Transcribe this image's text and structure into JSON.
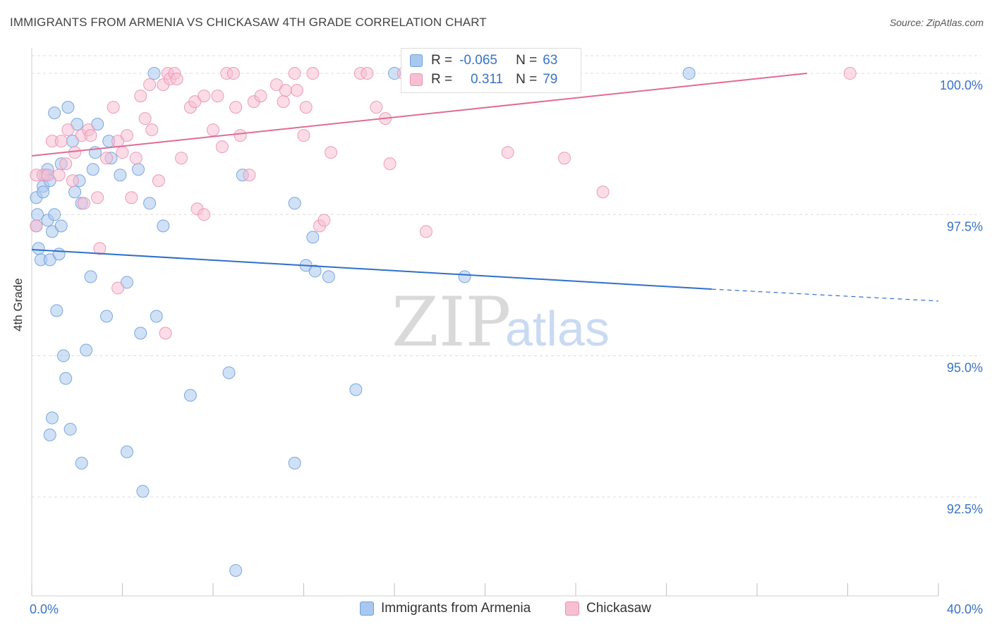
{
  "title": "IMMIGRANTS FROM ARMENIA VS CHICKASAW 4TH GRADE CORRELATION CHART",
  "source": "Source: ZipAtlas.com",
  "watermark": {
    "zip": "ZIP",
    "atlas": "atlas"
  },
  "colors": {
    "blue_fill": "#a9c8ef",
    "blue_stroke": "#6f9fdc",
    "blue_line": "#2f6fcb",
    "pink_fill": "#f7bfd3",
    "pink_stroke": "#e992b3",
    "pink_line": "#e06b98",
    "tick_label": "#3a73c4",
    "grid": "#dcdcdc"
  },
  "stats": {
    "armenia": {
      "r_label": "R =",
      "r_value": "-0.065",
      "n_label": "N =",
      "n_value": "63"
    },
    "chickasaw": {
      "r_label": "R =",
      "r_value": "0.311",
      "n_label": "N =",
      "n_value": "79"
    }
  },
  "legend": {
    "armenia": "Immigrants from Armenia",
    "chickasaw": "Chickasaw"
  },
  "chart_data": {
    "type": "scatter",
    "title": "IMMIGRANTS FROM ARMENIA VS CHICKASAW 4TH GRADE CORRELATION CHART",
    "xlabel": "",
    "ylabel": "4th Grade",
    "xlim": [
      0,
      40
    ],
    "ylim": [
      90.75,
      100.45
    ],
    "x_tick_labels": [
      {
        "value": 0,
        "label": "0.0%"
      },
      {
        "value": 40,
        "label": "40.0%"
      }
    ],
    "y_tick_labels": [
      {
        "value": 100.0,
        "label": "100.0%"
      },
      {
        "value": 97.5,
        "label": "97.5%"
      },
      {
        "value": 95.0,
        "label": "95.0%"
      },
      {
        "value": 92.5,
        "label": "92.5%"
      }
    ],
    "series": [
      {
        "name": "Immigrants from Armenia",
        "color": "#a9c8ef",
        "trend": {
          "x0": 0,
          "y0": 96.88,
          "x1": 30.0,
          "y1": 96.18,
          "dash_to_x": 40.0,
          "dash_to_y": 95.97
        },
        "points": [
          [
            0.2,
            97.8
          ],
          [
            0.25,
            97.5
          ],
          [
            0.2,
            97.3
          ],
          [
            0.3,
            96.9
          ],
          [
            0.4,
            96.7
          ],
          [
            0.5,
            98.0
          ],
          [
            0.5,
            97.9
          ],
          [
            0.6,
            98.2
          ],
          [
            0.7,
            98.3
          ],
          [
            0.7,
            97.4
          ],
          [
            0.8,
            98.1
          ],
          [
            0.8,
            96.7
          ],
          [
            0.8,
            93.6
          ],
          [
            0.9,
            97.2
          ],
          [
            0.9,
            93.9
          ],
          [
            1.0,
            97.5
          ],
          [
            1.0,
            99.3
          ],
          [
            1.1,
            95.8
          ],
          [
            1.2,
            96.8
          ],
          [
            1.3,
            97.3
          ],
          [
            1.3,
            98.4
          ],
          [
            1.4,
            95.0
          ],
          [
            1.5,
            94.6
          ],
          [
            1.6,
            99.4
          ],
          [
            1.7,
            93.7
          ],
          [
            1.8,
            98.8
          ],
          [
            1.9,
            97.9
          ],
          [
            2.0,
            99.1
          ],
          [
            2.1,
            98.1
          ],
          [
            2.2,
            97.7
          ],
          [
            2.2,
            93.1
          ],
          [
            2.4,
            95.1
          ],
          [
            2.6,
            96.4
          ],
          [
            2.7,
            98.3
          ],
          [
            2.8,
            98.6
          ],
          [
            2.9,
            99.1
          ],
          [
            3.3,
            95.7
          ],
          [
            3.4,
            98.8
          ],
          [
            3.5,
            98.5
          ],
          [
            3.9,
            98.2
          ],
          [
            4.2,
            96.3
          ],
          [
            4.2,
            93.3
          ],
          [
            4.7,
            98.3
          ],
          [
            4.8,
            95.4
          ],
          [
            4.9,
            92.6
          ],
          [
            5.2,
            97.7
          ],
          [
            5.4,
            100.0
          ],
          [
            5.5,
            95.7
          ],
          [
            5.8,
            97.3
          ],
          [
            7.0,
            94.3
          ],
          [
            8.7,
            94.7
          ],
          [
            9.3,
            98.2
          ],
          [
            9.0,
            91.2
          ],
          [
            11.6,
            97.7
          ],
          [
            11.6,
            93.1
          ],
          [
            12.1,
            96.6
          ],
          [
            12.4,
            97.1
          ],
          [
            12.5,
            96.5
          ],
          [
            13.1,
            96.4
          ],
          [
            14.3,
            94.4
          ],
          [
            16.0,
            100.0
          ],
          [
            19.1,
            96.4
          ],
          [
            29.0,
            100.0
          ]
        ]
      },
      {
        "name": "Chickasaw",
        "color": "#f7bfd3",
        "trend": {
          "x0": 0,
          "y0": 98.54,
          "x1": 34.2,
          "y1": 100.0
        },
        "points": [
          [
            0.2,
            98.2
          ],
          [
            0.2,
            97.3
          ],
          [
            0.5,
            98.2
          ],
          [
            0.7,
            98.2
          ],
          [
            0.9,
            98.8
          ],
          [
            1.2,
            98.2
          ],
          [
            1.3,
            98.8
          ],
          [
            1.5,
            98.4
          ],
          [
            1.6,
            99.0
          ],
          [
            1.8,
            98.1
          ],
          [
            1.9,
            98.6
          ],
          [
            2.2,
            98.9
          ],
          [
            2.3,
            97.7
          ],
          [
            2.5,
            99.0
          ],
          [
            2.6,
            98.9
          ],
          [
            2.9,
            97.8
          ],
          [
            3.0,
            96.9
          ],
          [
            3.3,
            98.5
          ],
          [
            3.6,
            99.4
          ],
          [
            3.8,
            98.8
          ],
          [
            3.8,
            96.2
          ],
          [
            4.0,
            98.6
          ],
          [
            4.2,
            98.9
          ],
          [
            4.4,
            97.8
          ],
          [
            4.6,
            98.5
          ],
          [
            4.8,
            99.6
          ],
          [
            5.0,
            99.2
          ],
          [
            5.2,
            99.8
          ],
          [
            5.3,
            99.0
          ],
          [
            5.6,
            98.1
          ],
          [
            5.8,
            99.8
          ],
          [
            5.9,
            95.4
          ],
          [
            6.0,
            100.0
          ],
          [
            6.1,
            99.9
          ],
          [
            6.3,
            100.0
          ],
          [
            6.4,
            99.9
          ],
          [
            6.6,
            98.5
          ],
          [
            7.0,
            99.4
          ],
          [
            7.2,
            99.5
          ],
          [
            7.3,
            97.6
          ],
          [
            7.6,
            97.5
          ],
          [
            7.6,
            99.6
          ],
          [
            8.0,
            99.0
          ],
          [
            8.2,
            99.6
          ],
          [
            8.4,
            98.7
          ],
          [
            8.6,
            100.0
          ],
          [
            8.9,
            100.0
          ],
          [
            9.0,
            99.4
          ],
          [
            9.2,
            98.9
          ],
          [
            9.6,
            98.2
          ],
          [
            9.8,
            99.5
          ],
          [
            10.1,
            99.6
          ],
          [
            10.8,
            99.8
          ],
          [
            11.1,
            99.5
          ],
          [
            11.2,
            99.7
          ],
          [
            11.6,
            100.0
          ],
          [
            11.7,
            99.7
          ],
          [
            12.0,
            98.9
          ],
          [
            12.1,
            99.4
          ],
          [
            12.4,
            100.0
          ],
          [
            12.7,
            97.3
          ],
          [
            12.9,
            97.4
          ],
          [
            13.2,
            98.6
          ],
          [
            14.5,
            100.0
          ],
          [
            14.8,
            100.0
          ],
          [
            15.2,
            99.4
          ],
          [
            15.6,
            99.2
          ],
          [
            15.8,
            98.4
          ],
          [
            16.4,
            100.0
          ],
          [
            16.7,
            100.0
          ],
          [
            17.0,
            100.0
          ],
          [
            17.4,
            97.2
          ],
          [
            17.8,
            100.0
          ],
          [
            18.0,
            100.0
          ],
          [
            19.7,
            100.0
          ],
          [
            21.0,
            98.6
          ],
          [
            23.5,
            98.5
          ],
          [
            25.2,
            97.9
          ],
          [
            36.1,
            100.0
          ]
        ]
      }
    ]
  }
}
